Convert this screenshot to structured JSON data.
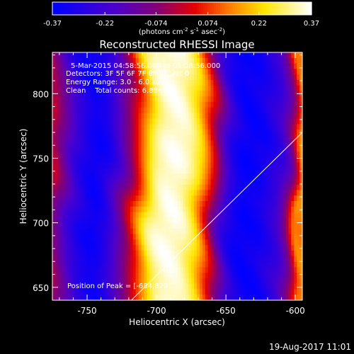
{
  "colorbar": {
    "ticks": [
      -0.37,
      -0.22,
      -0.074,
      0.074,
      0.22,
      0.37
    ],
    "tick_labels": [
      "-0.37",
      "-0.22",
      "-0.074",
      "0.074",
      "0.22",
      "0.37"
    ],
    "unit_label_main": "(photons cm",
    "unit_label_rest": [
      "s",
      "asec",
      ")"
    ],
    "unit_superscripts": [
      "-2",
      "-1",
      "-2"
    ]
  },
  "chart_data": {
    "type": "heatmap",
    "title": "Reconstructed RHESSI Image",
    "xlabel": "Heliocentric X (arcsec)",
    "ylabel": "Heliocentric Y (arcsec)",
    "xlim": [
      -775,
      -595
    ],
    "ylim": [
      640,
      832
    ],
    "xticks": [
      -750,
      -700,
      -650,
      -600
    ],
    "yticks": [
      650,
      700,
      750,
      800
    ],
    "xtick_labels": [
      "-750",
      "-700",
      "-650",
      "-600"
    ],
    "ytick_labels": [
      "650",
      "700",
      "750",
      "800"
    ],
    "color_range": [
      -0.37,
      0.37
    ],
    "annotations": [
      "5-Mar-2015 04:58:56.000 to 05:08:56.000",
      "Detectors: 3F 5F 6F 7F 8F 9F, Att 0",
      "Energy Range: 3.0 - 6.0 keV",
      "Clean    Total counts: 6.88e+04"
    ],
    "peak_label": "Position of Peak = [-684,829]",
    "column_profile_x": [
      -775,
      -760,
      -752,
      -745,
      -738,
      -731,
      -724,
      -718,
      -713,
      -708,
      -703,
      -698,
      -692,
      -686,
      -680,
      -675,
      -670,
      -666,
      -662,
      -658,
      -654,
      -650,
      -645,
      -640,
      -635,
      -625,
      -612,
      -606,
      -602,
      -599,
      -597,
      -595
    ],
    "column_profile_value": [
      -0.02,
      -0.25,
      -0.33,
      -0.36,
      -0.33,
      -0.24,
      -0.13,
      -0.02,
      0.09,
      0.2,
      0.3,
      0.35,
      0.37,
      0.37,
      0.35,
      0.3,
      0.23,
      0.14,
      0.05,
      -0.05,
      -0.15,
      -0.25,
      -0.32,
      -0.36,
      -0.37,
      -0.35,
      -0.25,
      -0.14,
      -0.02,
      0.1,
      0.15,
      0.15
    ],
    "diagonal_line": {
      "from": [
        -720,
        638
      ],
      "to": [
        -595,
        770
      ]
    }
  },
  "footer": {
    "date": "19-Aug-2017 11:01"
  }
}
